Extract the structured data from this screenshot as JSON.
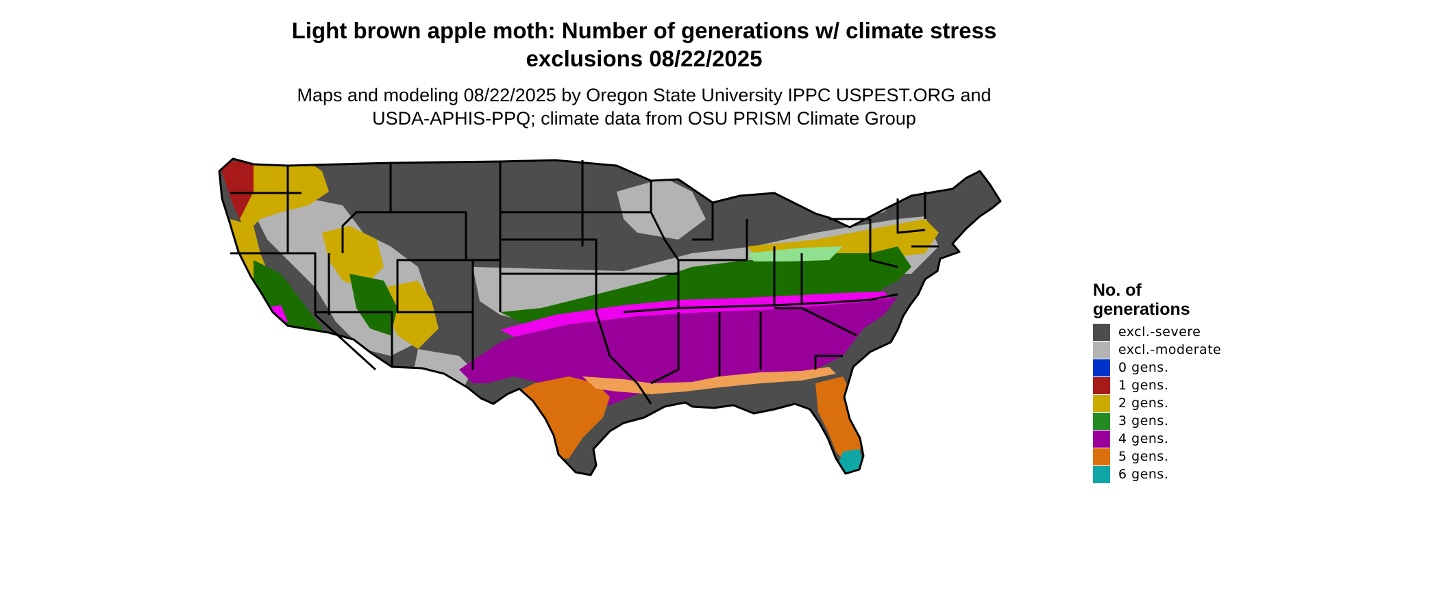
{
  "title": {
    "line1": "Light brown apple moth: Number of generations w/ climate stress",
    "line2": "exclusions 08/22/2025"
  },
  "subtitle": {
    "line1": "Maps and modeling 08/22/2025 by Oregon State University IPPC USPEST.ORG and",
    "line2": "USDA-APHIS-PPQ; climate data from OSU PRISM Climate Group"
  },
  "legend": {
    "title_line1": "No. of",
    "title_line2": "generations",
    "items": [
      {
        "label": "excl.-severe",
        "color": "#4d4d4d"
      },
      {
        "label": "excl.-moderate",
        "color": "#b3b3b3"
      },
      {
        "label": "0 gens.",
        "color": "#0033cc"
      },
      {
        "label": "1 gens.",
        "color": "#a81a1a"
      },
      {
        "label": "2 gens.",
        "color": "#ccaa00"
      },
      {
        "label": "3 gens.",
        "color": "#228b22"
      },
      {
        "label": "4 gens.",
        "color": "#990099"
      },
      {
        "label": "5 gens.",
        "color": "#d9700d"
      },
      {
        "label": "6 gens.",
        "color": "#0fa6a6"
      }
    ]
  },
  "map": {
    "colors": {
      "severe": "#4d4d4d",
      "moderate": "#b3b3b3",
      "gen1": "#a81a1a",
      "gen2": "#ccaa00",
      "gen3": "#1a6e00",
      "gen3_light": "#8fe08f",
      "gen4": "#990099",
      "gen4_magenta": "#ee00ee",
      "gen5": "#d9700d",
      "gen5_light": "#f0a055",
      "gen6": "#0fa6a6",
      "border": "#000000"
    }
  }
}
